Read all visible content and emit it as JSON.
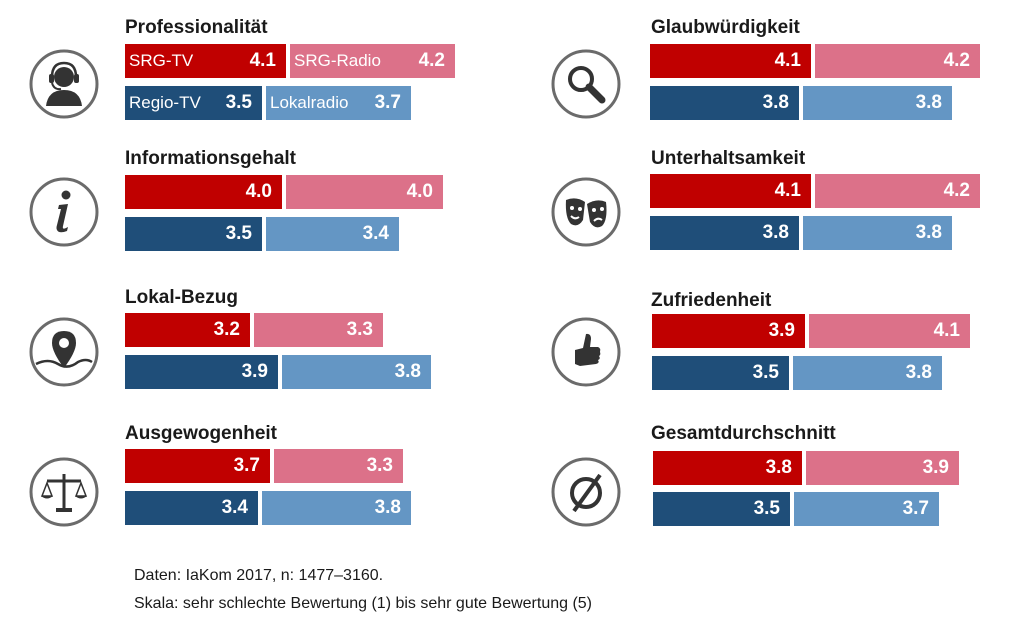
{
  "colors": {
    "SRG-TV": "#c00000",
    "SRG-Radio": "#dc7189",
    "Regio-TV": "#1f4e79",
    "Lokalradio": "#6496c4"
  },
  "chart_data": {
    "type": "bar",
    "orientation": "horizontal",
    "scale_note": "1 to 5",
    "legend_placement": "inline in first panel",
    "series_names": [
      "SRG-TV",
      "SRG-Radio",
      "Regio-TV",
      "Lokalradio"
    ],
    "panels": [
      {
        "title": "Professionalität",
        "icon": "headset-person-icon",
        "values": [
          4.1,
          4.2,
          3.5,
          3.7
        ]
      },
      {
        "title": "Glaubwürdigkeit",
        "icon": "magnifier-icon",
        "values": [
          4.1,
          4.2,
          3.8,
          3.8
        ]
      },
      {
        "title": "Informationsgehalt",
        "icon": "info-icon",
        "values": [
          4.0,
          4.0,
          3.5,
          3.4
        ]
      },
      {
        "title": "Unterhaltsamkeit",
        "icon": "theater-masks-icon",
        "values": [
          4.1,
          4.2,
          3.8,
          3.8
        ]
      },
      {
        "title": "Lokal-Bezug",
        "icon": "map-pin-icon",
        "values": [
          3.2,
          3.3,
          3.9,
          3.8
        ]
      },
      {
        "title": "Zufriedenheit",
        "icon": "thumbs-up-icon",
        "values": [
          3.9,
          4.1,
          3.5,
          3.8
        ]
      },
      {
        "title": "Ausgewogenheit",
        "icon": "scales-icon",
        "values": [
          3.7,
          3.3,
          3.4,
          3.8
        ]
      },
      {
        "title": "Gesamtdurchschnitt",
        "icon": "average-icon",
        "values": [
          3.8,
          3.9,
          3.5,
          3.7
        ]
      }
    ]
  },
  "footnote": {
    "line1": "Daten: IaKom 2017, n: 1477–3160.",
    "line2": "Skala: sehr schlechte Bewertung (1) bis sehr gute Bewertung (5)"
  }
}
